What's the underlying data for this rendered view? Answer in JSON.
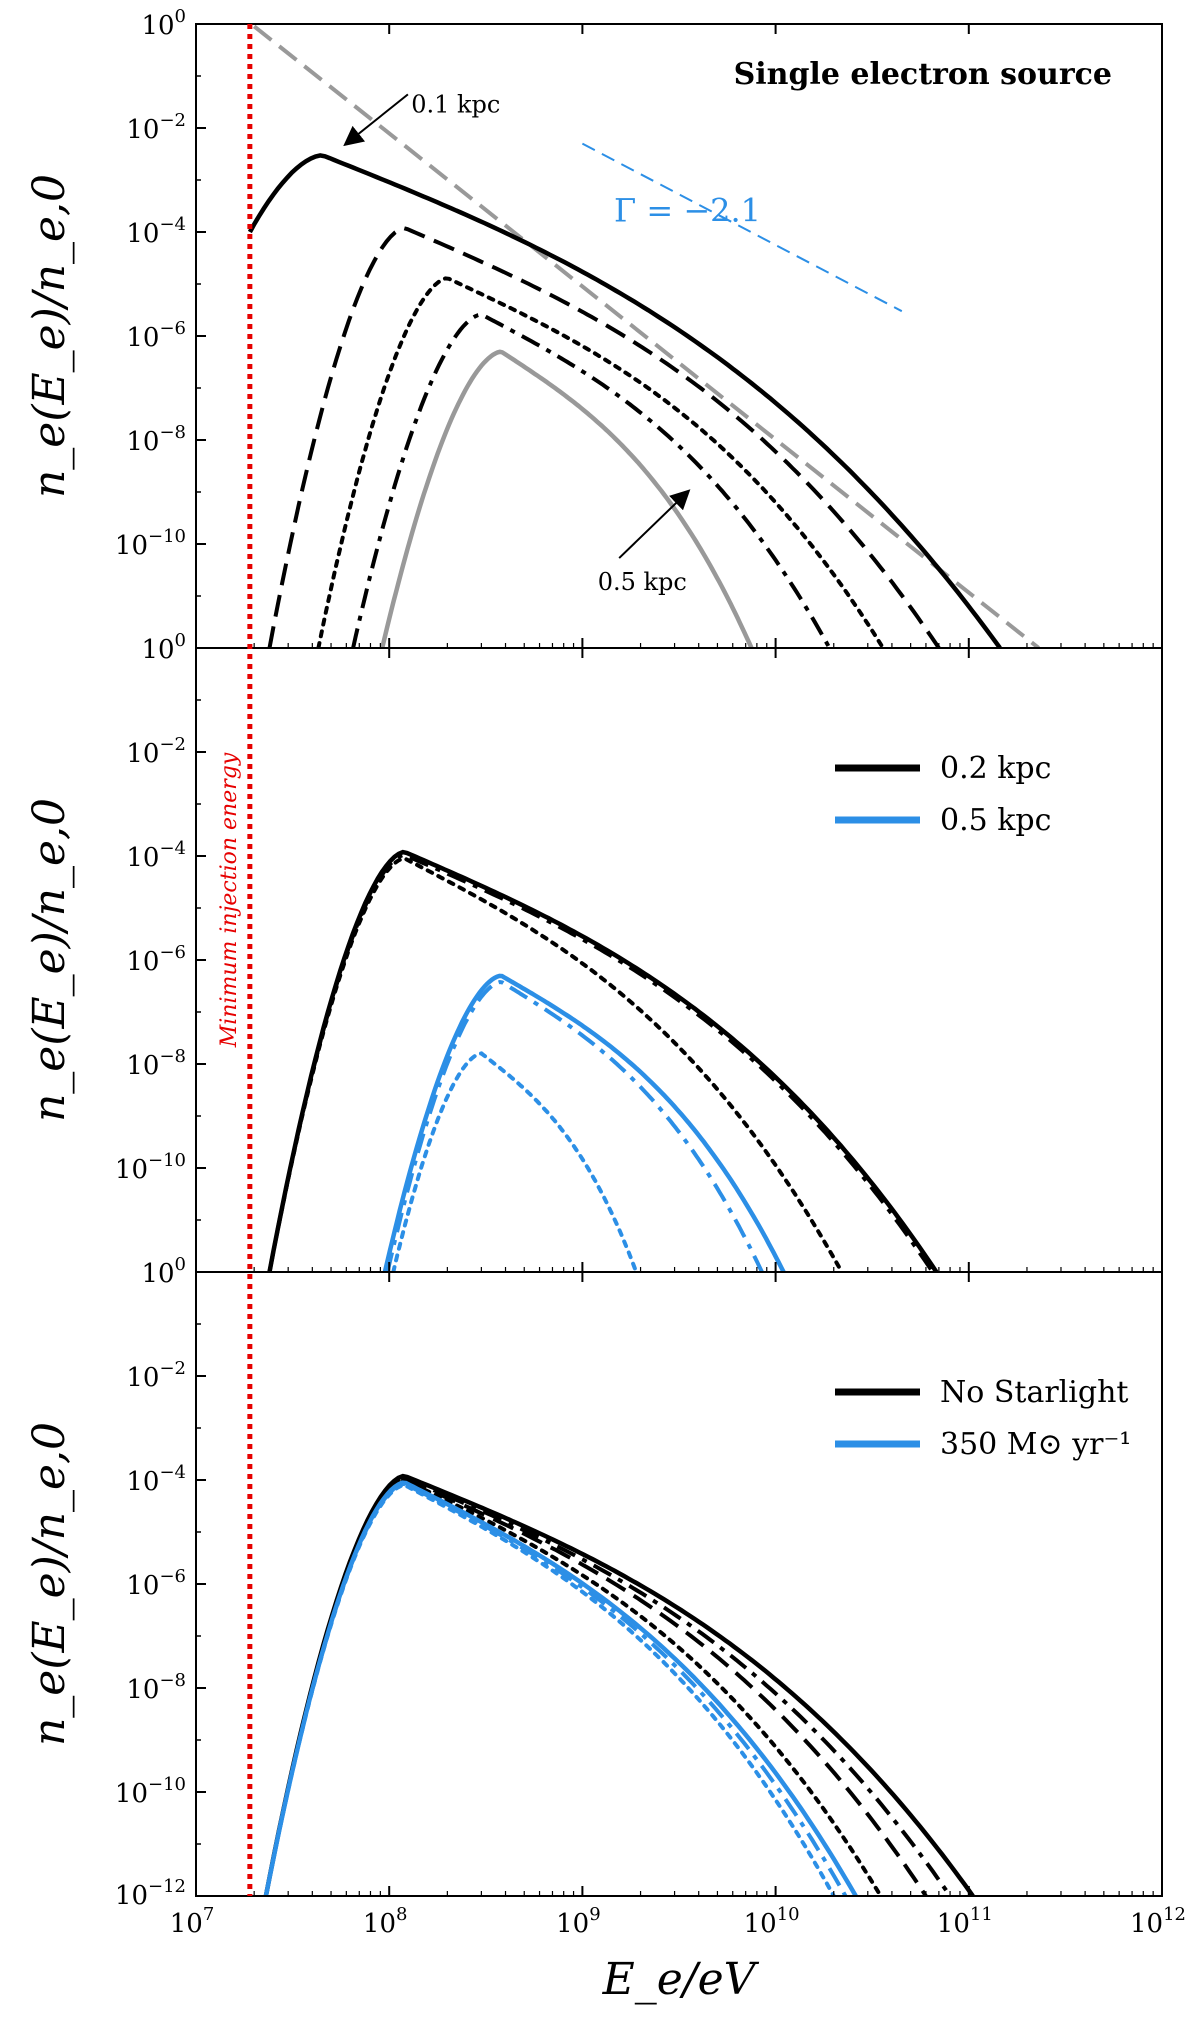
{
  "chart_data": {
    "type": "line",
    "x_scale": "log",
    "y_scale": "log",
    "xlim": [
      10000000.0,
      1000000000000.0
    ],
    "ylim": [
      1e-12,
      1
    ],
    "xlabel": "E_e/eV",
    "ylabel": "n_e(E_e)/n_e,0",
    "x_ticks": [
      {
        "base": "10",
        "exp": "7"
      },
      {
        "base": "10",
        "exp": "8"
      },
      {
        "base": "10",
        "exp": "9"
      },
      {
        "base": "10",
        "exp": "10"
      },
      {
        "base": "10",
        "exp": "11"
      },
      {
        "base": "10",
        "exp": "12"
      }
    ],
    "y_ticks": [
      {
        "value": 1,
        "base": "10",
        "exp": "0"
      },
      {
        "value": 0.01,
        "base": "10",
        "exp": "−2"
      },
      {
        "value": 0.0001,
        "base": "10",
        "exp": "−4"
      },
      {
        "value": 1e-06,
        "base": "10",
        "exp": "−6"
      },
      {
        "value": 1e-08,
        "base": "10",
        "exp": "−8"
      },
      {
        "value": 1e-10,
        "base": "10",
        "exp": "−10"
      }
    ],
    "bottom_tick": {
      "value": 1e-12,
      "base": "10",
      "exp": "−12"
    },
    "vline": {
      "x": 19000000.0,
      "label": "Minimum injection energy",
      "color": "#e60000"
    },
    "colors": {
      "black": "#000000",
      "gray": "#999999",
      "blue": "#2c8fe6",
      "red": "#e60000"
    },
    "panels": [
      {
        "title": "Single electron source",
        "gamma_label": "Γ = −2.1",
        "annotations": [
          {
            "text": "0.1 kpc",
            "x": 130000000.0,
            "y": 0.02
          },
          {
            "text": "0.5 kpc",
            "x": 1200000000.0,
            "y": 1.3e-11
          }
        ],
        "reference_lines": [
          {
            "name": "power law",
            "style": "dashed",
            "color": "gray",
            "x": [
              20000000.0,
              230000000000.0
            ],
            "y": [
              0.9,
              1e-12
            ]
          },
          {
            "name": "slope",
            "style": "thin-dashed",
            "color": "blue",
            "x": [
              1000000000.0,
              45000000000.0
            ],
            "y": [
              0.005,
              3e-06
            ]
          }
        ],
        "series": [
          {
            "style": "solid",
            "color": "black",
            "peak_x": 45000000.0,
            "peak_y": 0.003,
            "x_low": 19000000.0,
            "y_low": 0.0001,
            "x_cut": 145000000000.0
          },
          {
            "style": "dashed",
            "color": "black",
            "peak_x": 120000000.0,
            "peak_y": 0.00012,
            "x_low": 24000000.0,
            "x_cut": 70000000000.0
          },
          {
            "style": "dotted",
            "color": "black",
            "peak_x": 200000000.0,
            "peak_y": 1.3e-05,
            "x_low": 43000000.0,
            "x_cut": 36000000000.0
          },
          {
            "style": "dashdot",
            "color": "black",
            "peak_x": 300000000.0,
            "peak_y": 2.6e-06,
            "x_low": 65000000.0,
            "x_cut": 19000000000.0
          },
          {
            "style": "solid",
            "color": "gray",
            "peak_x": 380000000.0,
            "peak_y": 5e-07,
            "x_low": 92000000.0,
            "x_cut": 7500000000.0
          }
        ]
      },
      {
        "legend": [
          {
            "name": "0.2 kpc",
            "color": "black"
          },
          {
            "name": "0.5 kpc",
            "color": "blue"
          }
        ],
        "series": [
          {
            "style": "solid",
            "color": "black",
            "peak_x": 120000000.0,
            "peak_y": 0.00012,
            "x_low": 24000000.0,
            "x_cut": 68000000000.0
          },
          {
            "style": "dashdot",
            "color": "black",
            "peak_x": 120000000.0,
            "peak_y": 0.000105,
            "x_low": 24000000.0,
            "x_cut": 65000000000.0
          },
          {
            "style": "dotted",
            "color": "black",
            "peak_x": 120000000.0,
            "peak_y": 9e-05,
            "x_low": 24000000.0,
            "x_cut": 22000000000.0
          },
          {
            "style": "solid",
            "color": "blue",
            "peak_x": 380000000.0,
            "peak_y": 5e-07,
            "x_low": 95000000.0,
            "x_cut": 11000000000.0
          },
          {
            "style": "dashdot",
            "color": "blue",
            "peak_x": 380000000.0,
            "peak_y": 3.8e-07,
            "x_low": 98000000.0,
            "x_cut": 8500000000.0
          },
          {
            "style": "dotted",
            "color": "blue",
            "peak_x": 300000000.0,
            "peak_y": 1.6e-08,
            "x_low": 105000000.0,
            "x_cut": 1900000000.0
          }
        ]
      },
      {
        "legend": [
          {
            "name": "No Starlight",
            "color": "black"
          },
          {
            "name": "350 M⊙ yr⁻¹",
            "color": "blue"
          }
        ],
        "series": [
          {
            "style": "solid",
            "color": "black",
            "peak_x": 120000000.0,
            "peak_y": 0.00012,
            "x_low": 23000000.0,
            "x_cut": 105000000000.0
          },
          {
            "style": "dashdot",
            "color": "black",
            "peak_x": 120000000.0,
            "peak_y": 0.00011,
            "x_low": 23000000.0,
            "x_cut": 80000000000.0
          },
          {
            "style": "dashed",
            "color": "black",
            "peak_x": 120000000.0,
            "peak_y": 0.000105,
            "x_low": 23000000.0,
            "x_cut": 60000000000.0
          },
          {
            "style": "dotted",
            "color": "black",
            "peak_x": 120000000.0,
            "peak_y": 0.0001,
            "x_low": 23000000.0,
            "x_cut": 35000000000.0
          },
          {
            "style": "solid",
            "color": "blue",
            "peak_x": 120000000.0,
            "peak_y": 9e-05,
            "x_low": 23000000.0,
            "x_cut": 26000000000.0
          },
          {
            "style": "dashdot",
            "color": "blue",
            "peak_x": 120000000.0,
            "peak_y": 8.5e-05,
            "x_low": 23000000.0,
            "x_cut": 23000000000.0
          },
          {
            "style": "dotted",
            "color": "blue",
            "peak_x": 120000000.0,
            "peak_y": 8e-05,
            "x_low": 23000000.0,
            "x_cut": 20000000000.0
          }
        ]
      }
    ]
  }
}
